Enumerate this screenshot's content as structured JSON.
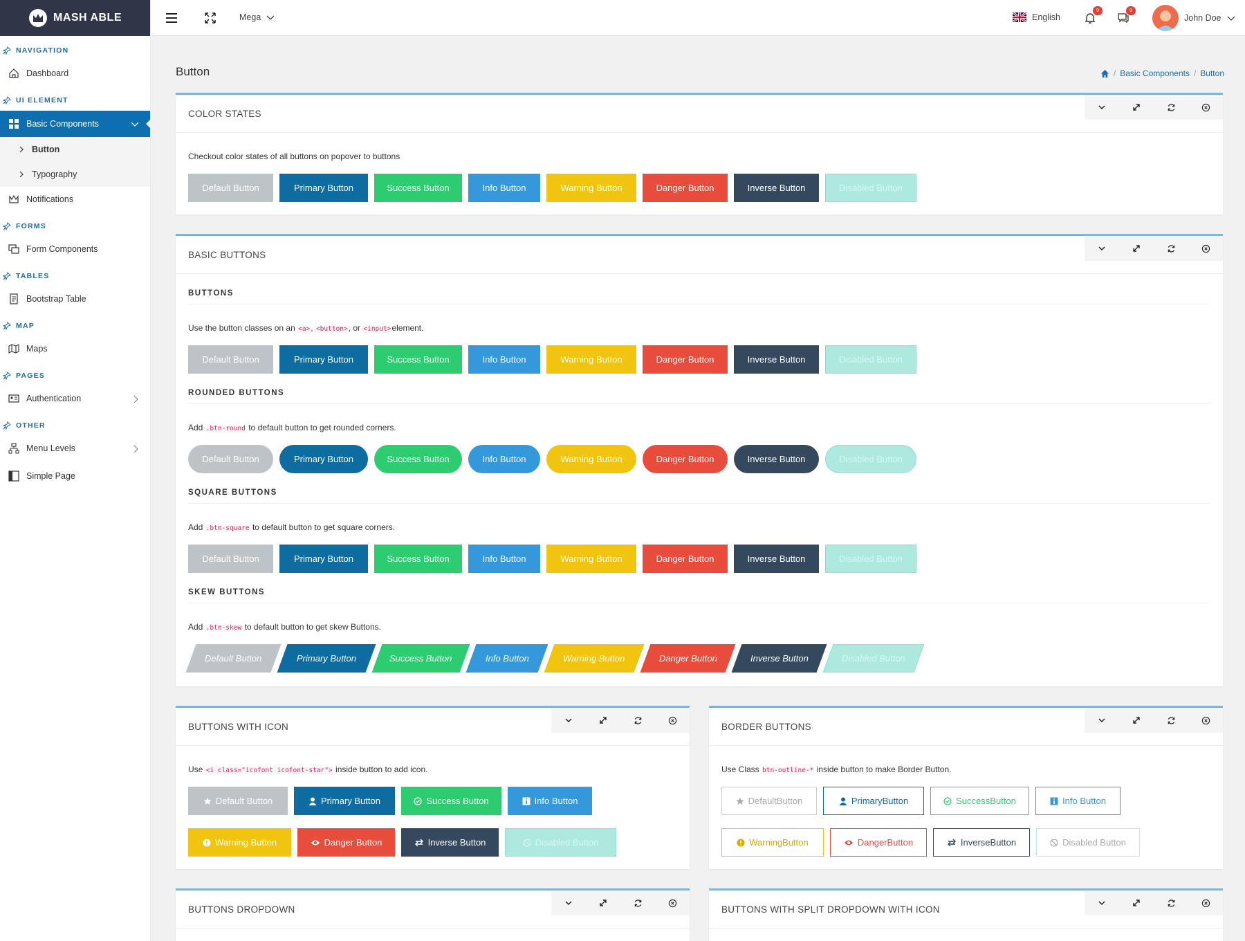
{
  "brand": {
    "name": "MASH ABLE"
  },
  "topbar": {
    "mega_label": "Mega",
    "language": "English",
    "notif_count": "9",
    "msg_count": "9",
    "user_name": "John Doe"
  },
  "sidebar": {
    "sections": [
      {
        "title": "NAVIGATION"
      },
      {
        "title": "UI ELEMENT"
      },
      {
        "title": "FORMS"
      },
      {
        "title": "TABLES"
      },
      {
        "title": "MAP"
      },
      {
        "title": "PAGES"
      },
      {
        "title": "OTHER"
      }
    ],
    "items": {
      "dashboard": "Dashboard",
      "basic_components": "Basic Components",
      "button": "Button",
      "typography": "Typography",
      "notifications": "Notifications",
      "form_components": "Form Components",
      "bootstrap_table": "Bootstrap Table",
      "maps": "Maps",
      "authentication": "Authentication",
      "menu_levels": "Menu Levels",
      "simple_page": "Simple Page"
    }
  },
  "page": {
    "title": "Button",
    "breadcrumb": [
      "Basic Components",
      "Button"
    ]
  },
  "buttons": {
    "default": "Default Button",
    "primary": "Primary Button",
    "success": "Success Button",
    "info": "Info Button",
    "warning": "Warning Button",
    "danger": "Danger Button",
    "inverse": "Inverse Button",
    "disabled": "Disabled Button"
  },
  "border_buttons": {
    "default": "DefaultButton",
    "primary": "PrimaryButton",
    "success": "SuccessButton",
    "info": "Info Button",
    "warning": "WarningButton",
    "danger": "DangerButton",
    "inverse": "InverseButton",
    "disabled": "Disabled Button"
  },
  "cards": {
    "color_states": {
      "title": "COLOR STATES",
      "desc": "Checkout color states of all buttons on popover to buttons"
    },
    "basic_buttons": {
      "title": "BASIC BUTTONS",
      "buttons_title": "BUTTONS",
      "buttons_desc_1": "Use the button classes on an ",
      "code_a": "<a>",
      "comma1": ", ",
      "code_button": "<button>",
      "comma2": ", or ",
      "code_input": "<input>",
      "buttons_desc_2": "element.",
      "rounded_title": "ROUNDED BUTTONS",
      "rounded_pre": "Add ",
      "rounded_code": ".btn-round",
      "rounded_post": " to default button to get rounded corners.",
      "square_title": "SQUARE BUTTONS",
      "square_pre": "Add ",
      "square_code": ".btn-square",
      "square_post": " to default button to get square corners.",
      "skew_title": "SKEW BUTTONS",
      "skew_pre": "Add ",
      "skew_code": ".btn-skew",
      "skew_post": " to default button to get skew Buttons."
    },
    "icon_buttons": {
      "title": "BUTTONS WITH ICON",
      "pre": "Use ",
      "code": "<i class=\"icofont icofont-star\">",
      "post": " inside button to add icon."
    },
    "border_buttons": {
      "title": "BORDER BUTTONS",
      "pre": "Use Class ",
      "code": "btn-outline-*",
      "post": " inside button to make Border Button."
    },
    "dropdown": {
      "title": "BUTTONS DROPDOWN"
    },
    "split_dropdown": {
      "title": "BUTTONS WITH SPLIT DROPDOWN WITH ICON"
    }
  },
  "colors": {
    "sidebar_active": "#0e6fb0",
    "section_label": "#1b6ca8",
    "card_top": "#7fb3dc",
    "default": "#bdc3c7",
    "primary": "#0f6ca0",
    "success": "#2ecc71",
    "info": "#3498db",
    "warning": "#f1c40f",
    "danger": "#e74c3c",
    "inverse": "#34495e",
    "disabled": "#aee9e0"
  }
}
